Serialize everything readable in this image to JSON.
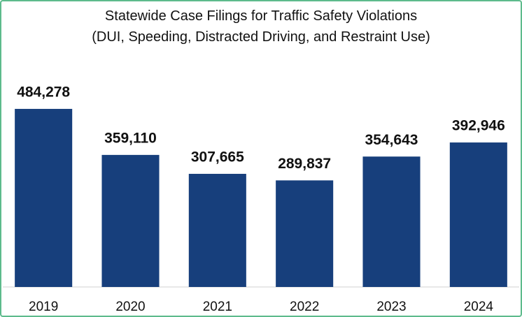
{
  "chart_data": {
    "type": "bar",
    "title": "Statewide Case Filings for Traffic Safety Violations (DUI, Speeding, Distracted Driving, and Restraint Use)",
    "categories": [
      "2019",
      "2020",
      "2021",
      "2022",
      "2023",
      "2024"
    ],
    "values": [
      484278,
      359110,
      307665,
      289837,
      354643,
      392946
    ],
    "value_labels": [
      "484,278",
      "359,110",
      "307,665",
      "289,837",
      "354,643",
      "392,946"
    ],
    "color": "#173f7c",
    "ylim": [
      0,
      600000
    ]
  }
}
